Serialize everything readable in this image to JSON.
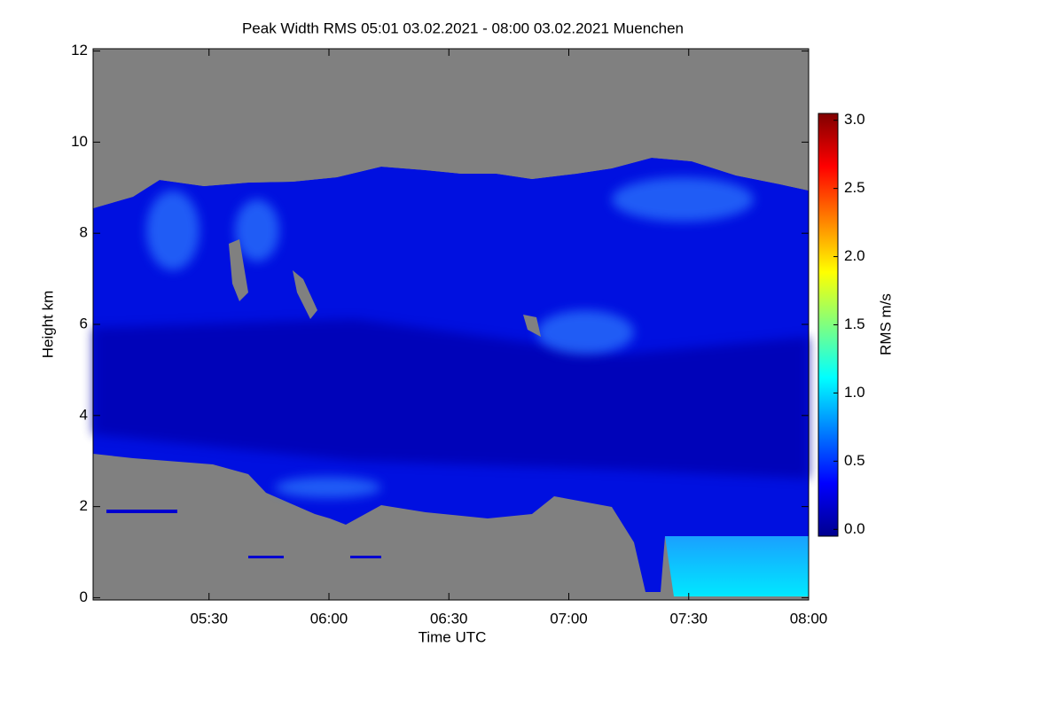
{
  "chart_data": {
    "type": "heatmap",
    "title": "Peak Width RMS   05:01 03.02.2021 - 08:00 03.02.2021 Muenchen",
    "xlabel": "Time UTC",
    "ylabel": "Height km",
    "xlim": [
      5.0167,
      8.0
    ],
    "xticks": [
      {
        "value": 5.5,
        "label": "05:30"
      },
      {
        "value": 6.0,
        "label": "06:00"
      },
      {
        "value": 6.5,
        "label": "06:30"
      },
      {
        "value": 7.0,
        "label": "07:00"
      },
      {
        "value": 7.5,
        "label": "07:30"
      },
      {
        "value": 8.0,
        "label": "08:00"
      }
    ],
    "ylim": [
      -0.05,
      12.05
    ],
    "yticks": [
      0,
      2,
      4,
      6,
      8,
      10,
      12
    ],
    "colorbar": {
      "label": "RMS m/s",
      "lim": [
        -0.05,
        3.05
      ],
      "ticks": [
        {
          "value": 0,
          "label": "0.0"
        },
        {
          "value": 0.5,
          "label": "0.5"
        },
        {
          "value": 1,
          "label": "1.0"
        },
        {
          "value": 1.5,
          "label": "1.5"
        },
        {
          "value": 2,
          "label": "2.0"
        },
        {
          "value": 2.5,
          "label": "2.5"
        },
        {
          "value": 3,
          "label": "3.0"
        }
      ]
    }
  }
}
